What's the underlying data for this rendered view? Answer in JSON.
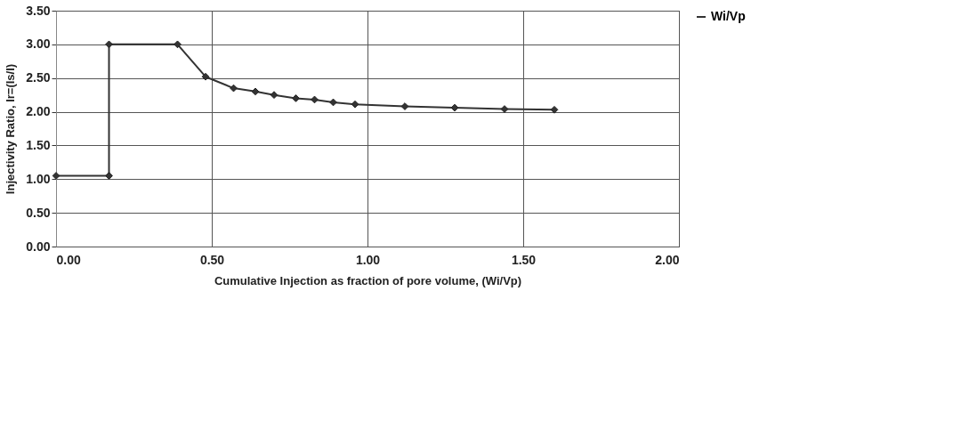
{
  "chart_data": {
    "type": "line",
    "xlabel": "Cumulative Injection as fraction of pore volume, (Wi/Vp)",
    "ylabel": "Injectivity Ratio, Ir=(Is/I)",
    "x": [
      0,
      0.17,
      0.17,
      0.39,
      0.48,
      0.57,
      0.64,
      0.7,
      0.77,
      0.83,
      0.89,
      0.96,
      1.12,
      1.28,
      1.44,
      1.6
    ],
    "series": [
      {
        "name": "Wi/Vp",
        "color": "#333333",
        "values": [
          1.05,
          1.05,
          3.0,
          3.0,
          2.52,
          2.35,
          2.3,
          2.25,
          2.2,
          2.18,
          2.14,
          2.11,
          2.08,
          2.06,
          2.04,
          2.03
        ]
      }
    ],
    "xlim": [
      0,
      2
    ],
    "xticks": [
      {
        "value": 0,
        "label": "0.00"
      },
      {
        "value": 0.5,
        "label": "0.50"
      },
      {
        "value": 1,
        "label": "1.00"
      },
      {
        "value": 1.5,
        "label": "1.50"
      },
      {
        "value": 2,
        "label": "2.00"
      }
    ],
    "ylim": [
      0,
      3.5
    ],
    "yticks": [
      {
        "value": 0,
        "label": "0.00"
      },
      {
        "value": 0.5,
        "label": "0.50"
      },
      {
        "value": 1,
        "label": "1.00"
      },
      {
        "value": 1.5,
        "label": "1.50"
      },
      {
        "value": 2,
        "label": "2.00"
      },
      {
        "value": 2.5,
        "label": "2.50"
      },
      {
        "value": 3,
        "label": "3.00"
      },
      {
        "value": 3.5,
        "label": "3.50"
      }
    ],
    "grid": true,
    "legend": "right",
    "marker": "diamond",
    "line_style": "solid"
  }
}
